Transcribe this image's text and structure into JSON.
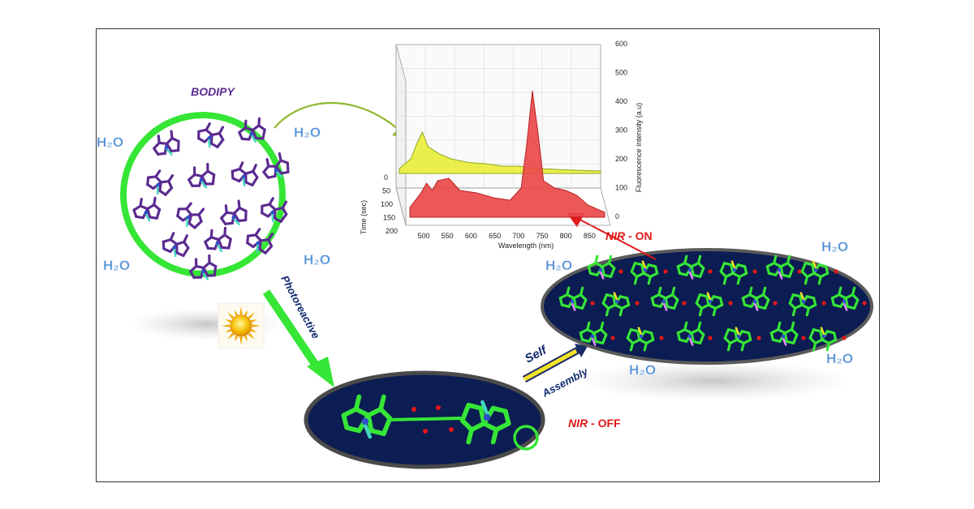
{
  "labels": {
    "bodipy": "BODIPY",
    "photoreactive": "Photoreactive",
    "self": "Self",
    "assembly": "Assembly",
    "nir_on_prefix": "NIR",
    "nir_on_suffix": " - ON",
    "nir_off_prefix": "NIR",
    "nir_off_suffix": " - OFF",
    "water": "H₂O"
  },
  "colors": {
    "green": "#36e636",
    "purple": "#5b2a90",
    "navy": "#0b1d52",
    "red": "#e01818",
    "water": "#4f8fd6",
    "yellow_fill": "#e8ee3c",
    "red_fill": "#ea4a4a"
  },
  "chart_data": {
    "type": "area",
    "xlabel": "Wavelength (nm)",
    "ylabel": "Time (sec)",
    "zlabel": "Fluorescence intensity (a.u)",
    "x_ticks": [
      "500",
      "550",
      "600",
      "650",
      "700",
      "750",
      "800",
      "850"
    ],
    "y_ticks": [
      "0",
      "50",
      "100",
      "150",
      "200"
    ],
    "z_ticks": [
      "0",
      "100",
      "200",
      "300",
      "400",
      "500",
      "600"
    ],
    "x": [
      480,
      500,
      510,
      520,
      530,
      550,
      570,
      600,
      630,
      660,
      680,
      690,
      700,
      710,
      720,
      740,
      760,
      780,
      800,
      830
    ],
    "series": [
      {
        "values": [
          20,
          60,
          120,
          170,
          110,
          80,
          60,
          45,
          40,
          30,
          30,
          30,
          25,
          22,
          20,
          18,
          16,
          14,
          12,
          10
        ]
      },
      {
        "values": [
          40,
          100,
          140,
          110,
          150,
          160,
          110,
          100,
          80,
          70,
          120,
          300,
          520,
          350,
          150,
          120,
          110,
          90,
          50,
          20
        ]
      }
    ]
  }
}
